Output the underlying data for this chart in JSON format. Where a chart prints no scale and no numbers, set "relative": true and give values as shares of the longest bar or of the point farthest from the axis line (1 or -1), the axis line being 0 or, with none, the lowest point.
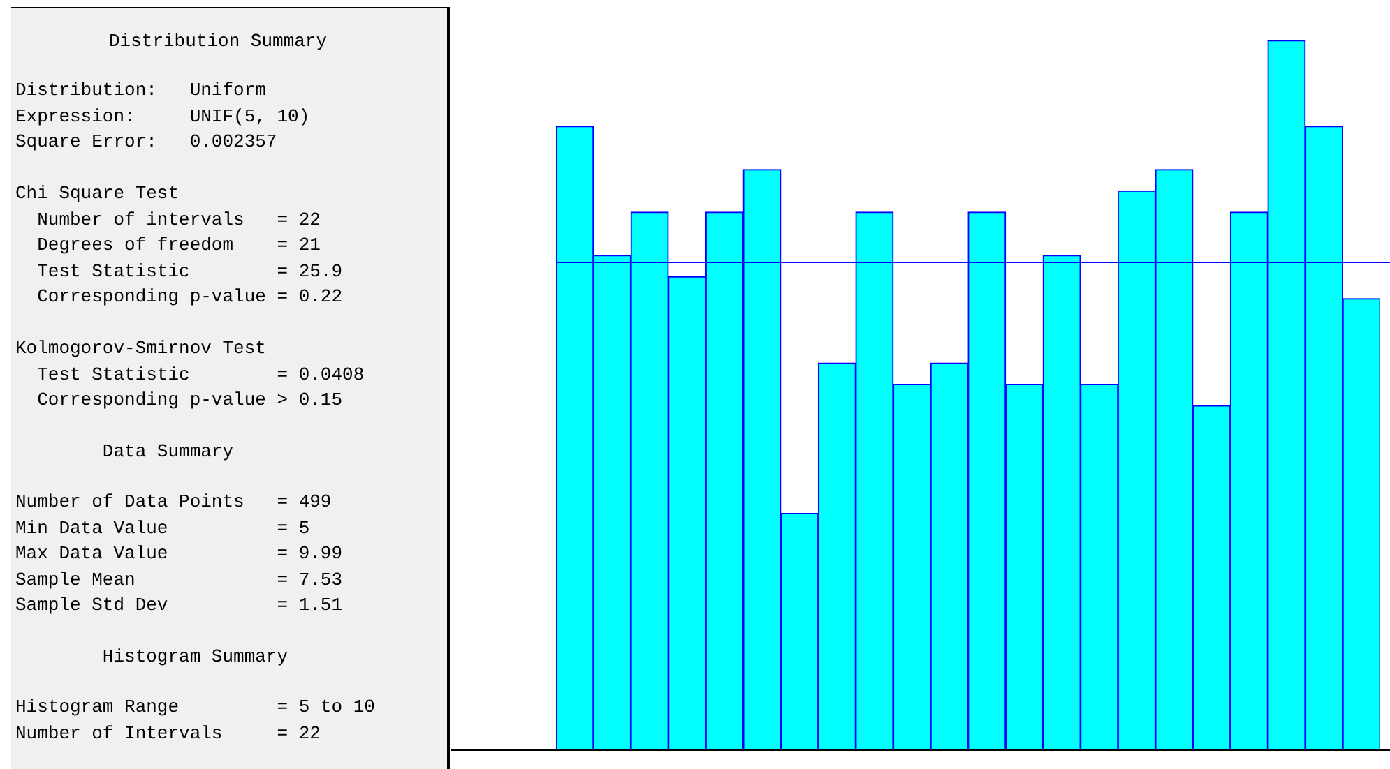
{
  "chart_data": [
    {
      "type": "other",
      "title": "Distribution Summary",
      "annotations": [
        "Distribution:   Uniform",
        "Expression:     UNIF(5, 10)",
        "Square Error:   0.002357",
        "Chi Square Test",
        "  Number of intervals   = 22",
        "  Degrees of freedom    = 21",
        "  Test Statistic        = 25.9",
        "  Corresponding p-value = 0.22",
        "Kolmogorov-Smirnov Test",
        "  Test Statistic        = 0.0408",
        "  Corresponding p-value > 0.15",
        "        Data Summary",
        "Number of Data Points   = 499",
        "Min Data Value          = 5",
        "Max Data Value          = 9.99",
        "Sample Mean             = 7.53",
        "Sample Std Dev          = 1.51",
        "        Histogram Summary",
        "Histogram Range         = 5 to 10",
        "Number of Intervals     = 22"
      ]
    },
    {
      "type": "bar",
      "relative": true,
      "categories": [
        null,
        null,
        null,
        null,
        null,
        null,
        null,
        null,
        null,
        null,
        null,
        null,
        null,
        null,
        null,
        null,
        null,
        null,
        null,
        null,
        null,
        null
      ],
      "series": [
        {
          "color": "#00ffff",
          "values": [
            0.879,
            0.697,
            0.758,
            0.667,
            0.758,
            0.818,
            0.333,
            0.545,
            0.758,
            0.515,
            0.545,
            0.758,
            0.515,
            0.697,
            0.515,
            0.788,
            0.818,
            0.485,
            0.758,
            1,
            0.879,
            0.636
          ]
        }
      ],
      "ref_lines": [
        {
          "axis": "y",
          "value": 0.687,
          "color": "#0000ff"
        }
      ]
    }
  ]
}
